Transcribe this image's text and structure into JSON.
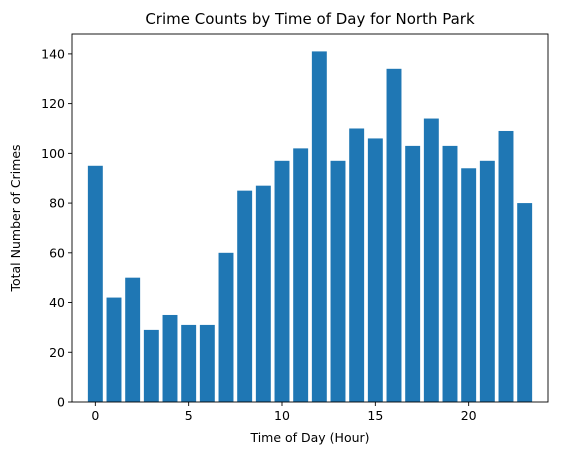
{
  "chart_data": {
    "type": "bar",
    "title": "Crime Counts by Time of Day for North Park",
    "xlabel": "Time of Day (Hour)",
    "ylabel": "Total Number of Crimes",
    "x": [
      0,
      1,
      2,
      3,
      4,
      5,
      6,
      7,
      8,
      9,
      10,
      11,
      12,
      13,
      14,
      15,
      16,
      17,
      18,
      19,
      20,
      21,
      22,
      23
    ],
    "values": [
      95,
      42,
      50,
      29,
      35,
      31,
      31,
      60,
      85,
      87,
      97,
      102,
      141,
      97,
      110,
      106,
      134,
      103,
      114,
      103,
      94,
      97,
      109,
      80
    ],
    "xlim": [
      -1.25,
      24.25
    ],
    "ylim": [
      0,
      148
    ],
    "xticks": [
      0,
      5,
      10,
      15,
      20
    ],
    "yticks": [
      0,
      20,
      40,
      60,
      80,
      100,
      120,
      140
    ],
    "bar_color": "#1f77b4",
    "grid": false
  }
}
